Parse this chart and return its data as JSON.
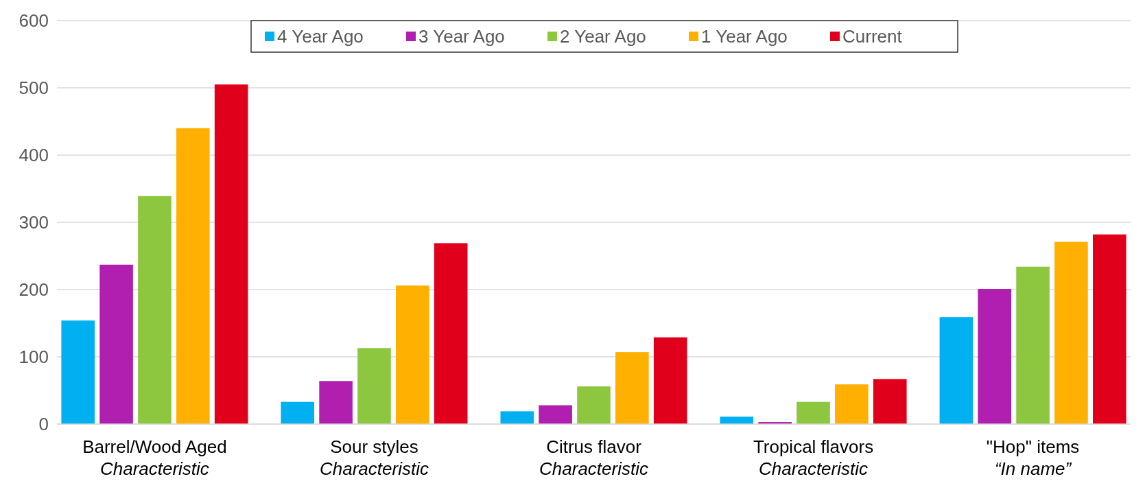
{
  "chart_data": {
    "type": "bar",
    "categories": [
      "Barrel/Wood Aged\nCharacteristic",
      "Sour styles\nCharacteristic",
      "Citrus flavor\nCharacteristic",
      "Tropical flavors\nCharacteristic",
      "\"Hop\" items\n“In name”"
    ],
    "series": [
      {
        "name": "4 Year Ago",
        "color": "#00b0f0",
        "values": [
          154,
          33,
          19,
          11,
          159
        ]
      },
      {
        "name": "3 Year Ago",
        "color": "#b01fb0",
        "values": [
          237,
          64,
          28,
          3,
          201
        ]
      },
      {
        "name": "2 Year Ago",
        "color": "#8dc63f",
        "values": [
          339,
          113,
          56,
          33,
          234
        ]
      },
      {
        "name": "1 Year Ago",
        "color": "#ffb000",
        "values": [
          440,
          206,
          107,
          59,
          271
        ]
      },
      {
        "name": "Current",
        "color": "#e0001b",
        "values": [
          505,
          269,
          129,
          67,
          282
        ]
      }
    ],
    "ylim": [
      0,
      600
    ],
    "yticks": [
      0,
      100,
      200,
      300,
      400,
      500,
      600
    ],
    "grid": "y",
    "legend": "top"
  }
}
